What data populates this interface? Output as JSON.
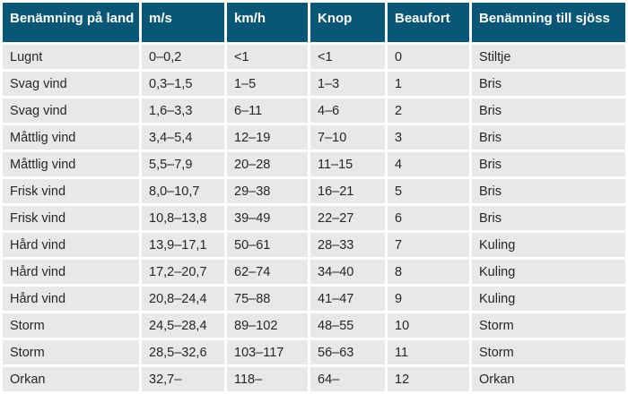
{
  "colors": {
    "header_bg": "#0a5676",
    "header_text": "#ffffff",
    "row_bg": "#e8e8e8",
    "gutter": "#ffffff",
    "body_text": "#262626"
  },
  "chart_data": {
    "type": "table",
    "columns": [
      "Benämning på land",
      "m/s",
      "km/h",
      "Knop",
      "Beaufort",
      "Benämning till sjöss"
    ],
    "rows": [
      [
        "Lugnt",
        "0–0,2",
        "<1",
        "<1",
        "0",
        "Stiltje"
      ],
      [
        "Svag vind",
        "0,3–1,5",
        "1–5",
        "1–3",
        "1",
        "Bris"
      ],
      [
        "Svag vind",
        "1,6–3,3",
        "6–11",
        "4–6",
        "2",
        "Bris"
      ],
      [
        "Måttlig vind",
        "3,4–5,4",
        "12–19",
        "7–10",
        "3",
        "Bris"
      ],
      [
        "Måttlig vind",
        "5,5–7,9",
        "20–28",
        "11–15",
        "4",
        "Bris"
      ],
      [
        "Frisk vind",
        "8,0–10,7",
        "29–38",
        "16–21",
        "5",
        "Bris"
      ],
      [
        "Frisk vind",
        "10,8–13,8",
        "39–49",
        "22–27",
        "6",
        "Bris"
      ],
      [
        "Hård vind",
        "13,9–17,1",
        "50–61",
        "28–33",
        "7",
        "Kuling"
      ],
      [
        "Hård vind",
        "17,2–20,7",
        "62–74",
        "34–40",
        "8",
        "Kuling"
      ],
      [
        "Hård vind",
        "20,8–24,4",
        "75–88",
        "41–47",
        "9",
        "Kuling"
      ],
      [
        "Storm",
        "24,5–28,4",
        "89–102",
        "48–55",
        "10",
        "Storm"
      ],
      [
        "Storm",
        "28,5–32,6",
        "103–117",
        "56–63",
        "11",
        "Storm"
      ],
      [
        "Orkan",
        "32,7–",
        "118–",
        "64–",
        "12",
        "Orkan"
      ]
    ]
  }
}
